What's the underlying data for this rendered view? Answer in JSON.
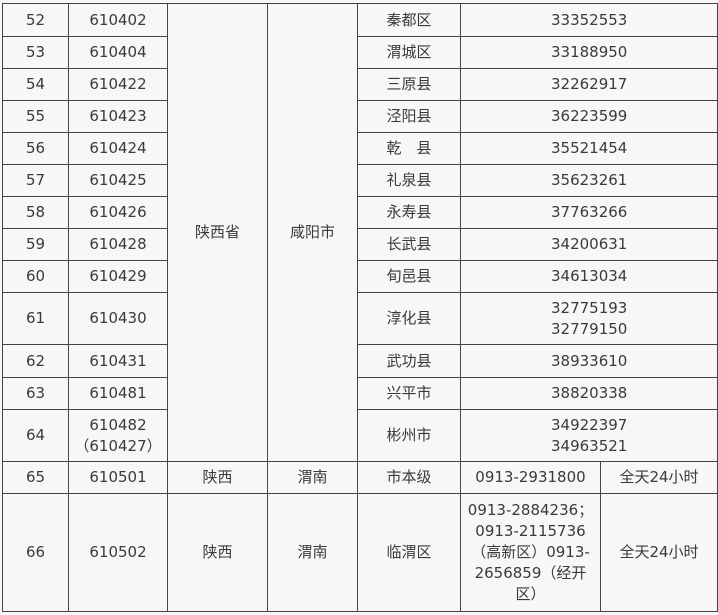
{
  "rows_a": [
    {
      "no": "52",
      "code": "610402",
      "district": "秦都区",
      "phone": "33352553"
    },
    {
      "no": "53",
      "code": "610404",
      "district": "渭城区",
      "phone": "33188950"
    },
    {
      "no": "54",
      "code": "610422",
      "district": "三原县",
      "phone": "32262917"
    },
    {
      "no": "55",
      "code": "610423",
      "district": "泾阳县",
      "phone": "36223599"
    },
    {
      "no": "56",
      "code": "610424",
      "district": "乾　县",
      "phone": "35521454"
    },
    {
      "no": "57",
      "code": "610425",
      "district": "礼泉县",
      "phone": "35623261"
    },
    {
      "no": "58",
      "code": "610426",
      "district": "永寿县",
      "phone": "37763266"
    },
    {
      "no": "59",
      "code": "610428",
      "district": "长武县",
      "phone": "34200631"
    },
    {
      "no": "60",
      "code": "610429",
      "district": "旬邑县",
      "phone": "34613034"
    },
    {
      "no": "61",
      "code": "610430",
      "district": "淳化县",
      "phone": "32775193\n        32779150"
    },
    {
      "no": "62",
      "code": "610431",
      "district": "武功县",
      "phone": "38933610"
    },
    {
      "no": "63",
      "code": "610481",
      "district": "兴平市",
      "phone": "38820338"
    },
    {
      "no": "64",
      "code": "610482\n（610427）",
      "district": "彬州市",
      "phone": "34922397\n        34963521"
    }
  ],
  "group_a": {
    "province": "陕西省",
    "city": "咸阳市"
  },
  "rows_b": [
    {
      "no": "65",
      "code": "610501",
      "province": "陕西",
      "city": "渭南",
      "district": "市本级",
      "phone": "0913-2931800",
      "hours": "全天24小时"
    },
    {
      "no": "66",
      "code": "610502",
      "province": "陕西",
      "city": "渭南",
      "district": "临渭区",
      "phone": "0913-2884236；0913-2115736（高新区）0913-2656859（经开区）",
      "hours": "全天24小时"
    }
  ]
}
